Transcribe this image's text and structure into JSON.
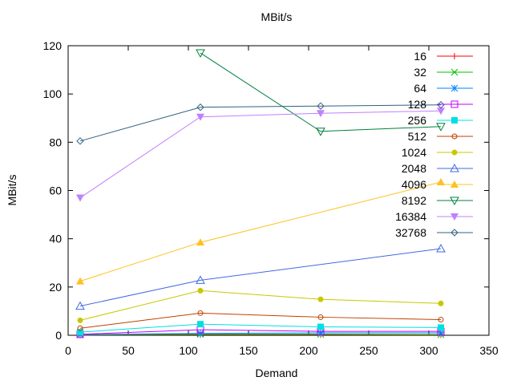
{
  "chart_data": {
    "type": "line",
    "title": "MBit/s",
    "xlabel": "Demand",
    "ylabel": "MBit/s",
    "xlim": [
      0,
      350
    ],
    "ylim": [
      0,
      120
    ],
    "xticks": [
      0,
      50,
      100,
      150,
      200,
      250,
      300,
      350
    ],
    "yticks": [
      0,
      20,
      40,
      60,
      80,
      100,
      120
    ],
    "grid": false,
    "legend_position": "top-right",
    "x": [
      10,
      110,
      210,
      310
    ],
    "series": [
      {
        "name": "16",
        "color": "#ff0000",
        "marker": "plus",
        "values": [
          0.1,
          0.3,
          0.3,
          0.2
        ]
      },
      {
        "name": "32",
        "color": "#00c000",
        "marker": "cross",
        "values": [
          0.2,
          0.4,
          0.4,
          0.3
        ]
      },
      {
        "name": "64",
        "color": "#0080ff",
        "marker": "star",
        "values": [
          0.3,
          0.8,
          1.0,
          1.0
        ]
      },
      {
        "name": "128",
        "color": "#c000ff",
        "marker": "open-square",
        "values": [
          0.4,
          2.3,
          1.6,
          1.6
        ]
      },
      {
        "name": "256",
        "color": "#00e0e0",
        "marker": "filled-square",
        "values": [
          1.3,
          4.6,
          3.5,
          3.2
        ]
      },
      {
        "name": "512",
        "color": "#c04000",
        "marker": "open-circle",
        "values": [
          2.9,
          9.2,
          7.5,
          6.5
        ]
      },
      {
        "name": "1024",
        "color": "#c8c800",
        "marker": "filled-circle",
        "values": [
          6.2,
          18.5,
          14.9,
          13.2
        ]
      },
      {
        "name": "2048",
        "color": "#4169e1",
        "marker": "open-triangle",
        "values": [
          12.1,
          22.8,
          null,
          35.9
        ]
      },
      {
        "name": "4096",
        "color": "#ffc020",
        "marker": "filled-triangle",
        "values": [
          22.4,
          38.5,
          null,
          63.5
        ]
      },
      {
        "name": "8192",
        "color": "#008040",
        "marker": "open-down-triangle",
        "values": [
          null,
          117,
          84.5,
          86.5
        ]
      },
      {
        "name": "16384",
        "color": "#c080ff",
        "marker": "filled-down-triangle",
        "values": [
          57,
          90.5,
          92,
          93
        ]
      },
      {
        "name": "32768",
        "color": "#306080",
        "marker": "open-diamond",
        "values": [
          80.5,
          94.5,
          95,
          95.5
        ]
      }
    ]
  }
}
